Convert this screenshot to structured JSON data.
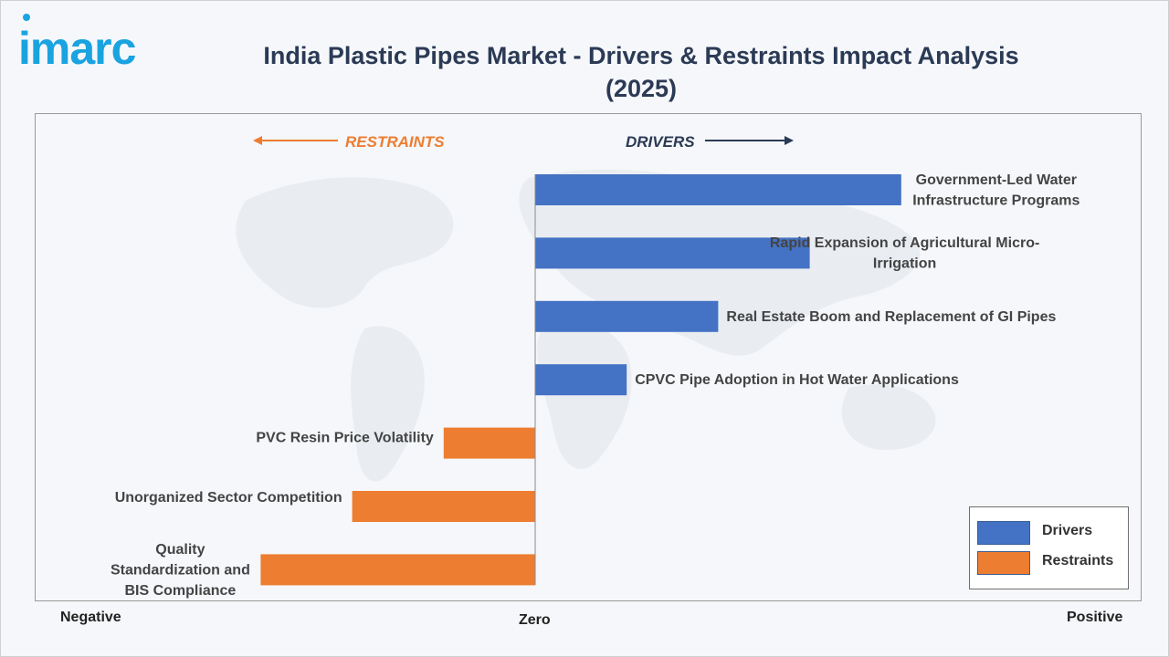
{
  "brand": {
    "logo_text": "imarc"
  },
  "title_line1": "India Plastic Pipes Market - Drivers & Restraints Impact Analysis",
  "title_line2": "(2025)",
  "direction_labels": {
    "restraints": "RESTRAINTS",
    "drivers": "DRIVERS"
  },
  "axis_words": {
    "negative": "Negative",
    "zero": "Zero",
    "positive": "Positive"
  },
  "legend": {
    "drivers": "Drivers",
    "restraints": "Restraints"
  },
  "colors": {
    "drivers": "#4472c4",
    "restraints": "#ed7d31",
    "arrow_drivers": "#2b3a55",
    "arrow_restraints": "#ed7d31"
  },
  "chart_data": {
    "type": "bar",
    "orientation": "horizontal",
    "grid": false,
    "legend_position": "bottom-right",
    "xlim": [
      -3,
      4
    ],
    "series": [
      {
        "name": "Drivers",
        "color": "#4472c4"
      },
      {
        "name": "Restraints",
        "color": "#ed7d31"
      }
    ],
    "bars": [
      {
        "label_lines": [
          "Government-Led Water",
          "Infrastructure Programs"
        ],
        "value": 4,
        "series": "Drivers"
      },
      {
        "label_lines": [
          "Rapid Expansion of Agricultural Micro-",
          "Irrigation"
        ],
        "value": 3,
        "series": "Drivers"
      },
      {
        "label_lines": [
          "Real Estate Boom and Replacement of GI Pipes"
        ],
        "value": 2,
        "series": "Drivers"
      },
      {
        "label_lines": [
          "CPVC Pipe Adoption in Hot Water Applications"
        ],
        "value": 1,
        "series": "Drivers"
      },
      {
        "label_lines": [
          "PVC Resin Price Volatility"
        ],
        "value": -1,
        "series": "Restraints"
      },
      {
        "label_lines": [
          "Unorganized Sector Competition"
        ],
        "value": -2,
        "series": "Restraints"
      },
      {
        "label_lines": [
          "Quality",
          "Standardization and",
          "BIS Compliance"
        ],
        "value": -3,
        "series": "Restraints"
      }
    ]
  }
}
